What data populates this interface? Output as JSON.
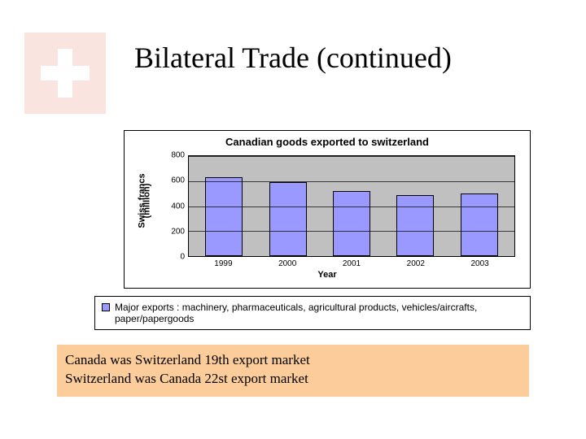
{
  "title": "Bilateral Trade (continued)",
  "flag": {
    "background_color": "#fae4e0",
    "cross_color": "#ffffff"
  },
  "chart": {
    "type": "bar",
    "title": "Canadian goods exported to switzerland",
    "title_fontsize": 13,
    "ylabel_line1": "Swiss francs",
    "ylabel_line2": "(million)",
    "xlabel": "Year",
    "label_fontsize": 11,
    "categories": [
      "1999",
      "2000",
      "2001",
      "2002",
      "2003"
    ],
    "values": [
      630,
      590,
      520,
      490,
      500
    ],
    "ylim": [
      0,
      800
    ],
    "ytick_step": 200,
    "yticks": [
      "0",
      "200",
      "400",
      "600",
      "800"
    ],
    "bar_color": "#9999ff",
    "plot_background": "#c0c0c0",
    "grid_color": "#000000",
    "border_color": "#000000",
    "bar_width": 0.55,
    "tick_fontsize": 10
  },
  "legend": {
    "swatch_color": "#9999ff",
    "text": "Major exports : machinery, pharmaceuticals, agricultural products, vehicles/aircrafts, paper/papergoods"
  },
  "notes": {
    "background_color": "#fccd9a",
    "line1": "Canada was Switzerland 19th export market",
    "line2": "Switzerland was Canada 22st export market"
  }
}
